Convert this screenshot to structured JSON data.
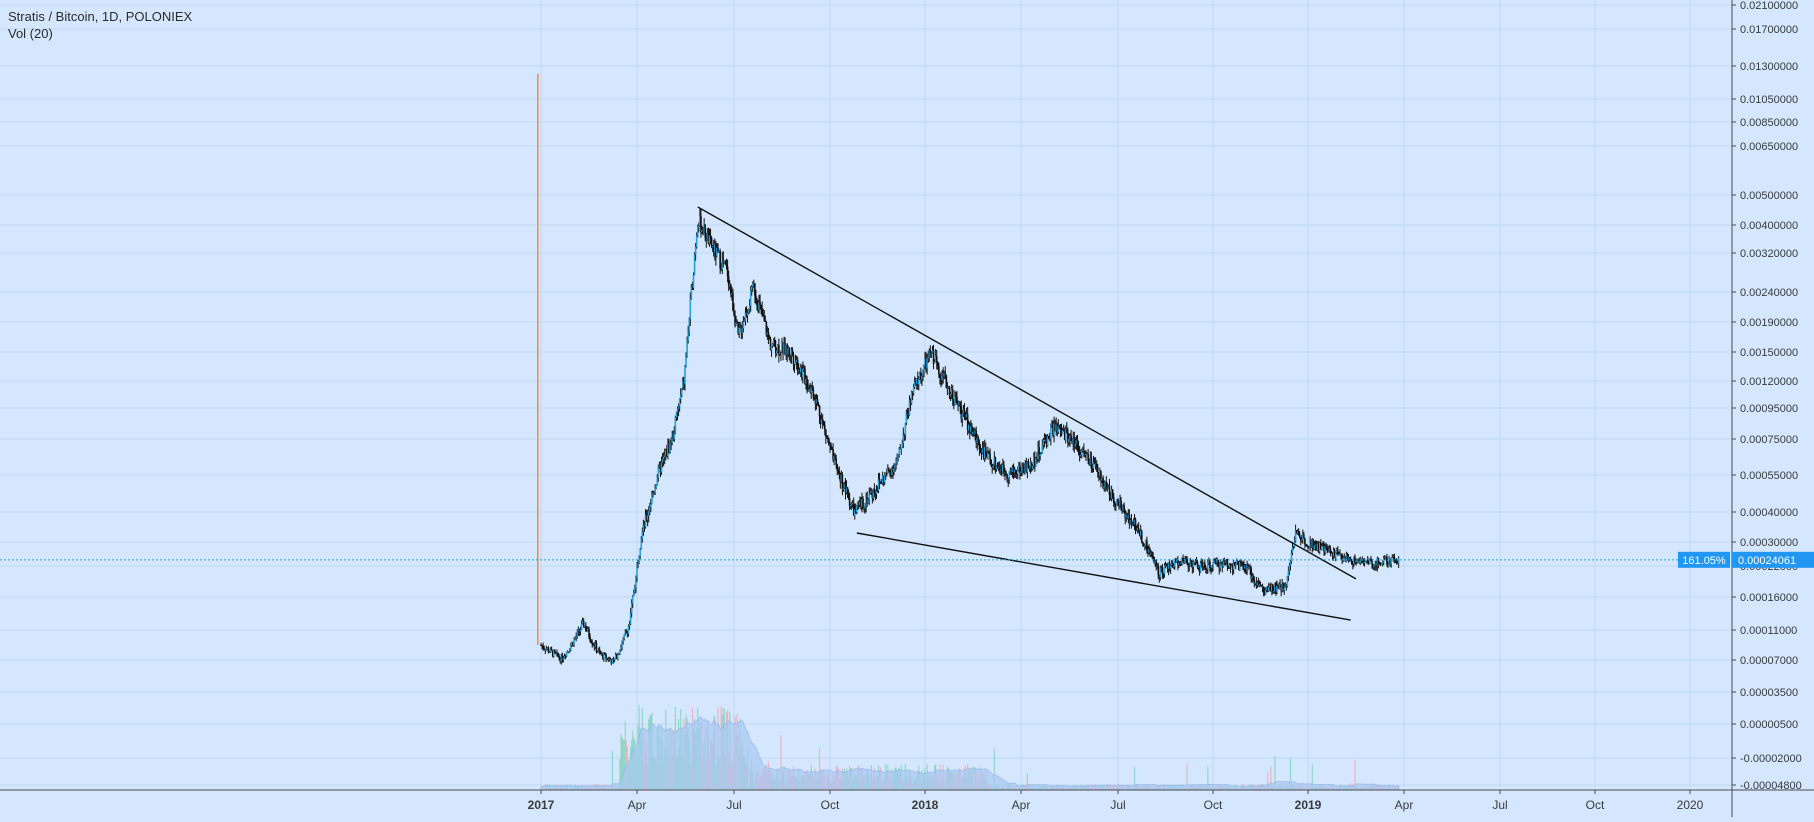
{
  "header": {
    "symbol_title": "Stratis / Bitcoin, 1D, POLONIEX",
    "indicator_title": "Vol (20)"
  },
  "colors": {
    "background": "#d4e7fe",
    "grid": "#bfd8f2",
    "axis_line": "#4a4a4a",
    "axis_text": "#3a3a3a",
    "candle": "#111111",
    "volume_area": "#a9c9f4",
    "volume_up": "#7fd3b8",
    "volume_down": "#f0a6b8",
    "price_line": "#2b9fd8",
    "price_label_bg": "#2196f3",
    "price_label_text": "#ffffff",
    "trendline": "#111111",
    "spike": "#f28c3c"
  },
  "price_label": {
    "percent": "161.05%",
    "value": "0.00024061"
  },
  "chart_data": {
    "type": "candlestick",
    "title": "Stratis / Bitcoin, 1D, POLONIEX",
    "y_axis_side": "right",
    "y_ticks": [
      "0.02100000",
      "0.01700000",
      "0.01300000",
      "0.01050000",
      "0.00850000",
      "0.00650000",
      "0.00500000",
      "0.00400000",
      "0.00320000",
      "0.00240000",
      "0.00190000",
      "0.00150000",
      "0.00120000",
      "0.00095000",
      "0.00075000",
      "0.00055000",
      "0.00040000",
      "0.00030000",
      "0.00022000",
      "0.00016000",
      "0.00011000",
      "0.00007000",
      "0.00003500",
      "0.00000500",
      "-0.00002000",
      "-0.00004800"
    ],
    "x_ticks": [
      {
        "label": "2017",
        "bold": true
      },
      {
        "label": "Apr",
        "bold": false
      },
      {
        "label": "Jul",
        "bold": false
      },
      {
        "label": "Oct",
        "bold": false
      },
      {
        "label": "2018",
        "bold": true
      },
      {
        "label": "Apr",
        "bold": false
      },
      {
        "label": "Jul",
        "bold": false
      },
      {
        "label": "Oct",
        "bold": false
      },
      {
        "label": "2019",
        "bold": true
      },
      {
        "label": "Apr",
        "bold": false
      },
      {
        "label": "Jul",
        "bold": false
      },
      {
        "label": "Oct",
        "bold": false
      },
      {
        "label": "2020",
        "bold": false
      }
    ],
    "grid": true,
    "price_path": [
      [
        "2017-01-01",
        9e-05
      ],
      [
        "2017-01-20",
        7.2e-05
      ],
      [
        "2017-02-10",
        0.00012
      ],
      [
        "2017-02-25",
        7.8e-05
      ],
      [
        "2017-03-10",
        6.8e-05
      ],
      [
        "2017-03-25",
        0.00012
      ],
      [
        "2017-04-05",
        0.00032
      ],
      [
        "2017-04-20",
        0.00055
      ],
      [
        "2017-05-05",
        0.00078
      ],
      [
        "2017-05-15",
        0.0012
      ],
      [
        "2017-05-22",
        0.0024
      ],
      [
        "2017-05-28",
        0.0042
      ],
      [
        "2017-06-10",
        0.0034
      ],
      [
        "2017-06-25",
        0.0028
      ],
      [
        "2017-07-05",
        0.0017
      ],
      [
        "2017-07-20",
        0.0025
      ],
      [
        "2017-08-05",
        0.0016
      ],
      [
        "2017-08-25",
        0.0015
      ],
      [
        "2017-09-15",
        0.0011
      ],
      [
        "2017-10-05",
        0.00062
      ],
      [
        "2017-10-25",
        0.0004
      ],
      [
        "2017-11-15",
        0.0005
      ],
      [
        "2017-12-05",
        0.00062
      ],
      [
        "2017-12-20",
        0.0011
      ],
      [
        "2018-01-07",
        0.0015
      ],
      [
        "2018-01-25",
        0.0011
      ],
      [
        "2018-02-10",
        0.00085
      ],
      [
        "2018-03-01",
        0.00064
      ],
      [
        "2018-03-20",
        0.00056
      ],
      [
        "2018-04-10",
        0.0006
      ],
      [
        "2018-05-01",
        0.00082
      ],
      [
        "2018-05-20",
        0.00075
      ],
      [
        "2018-06-10",
        0.00058
      ],
      [
        "2018-07-01",
        0.00043
      ],
      [
        "2018-07-20",
        0.00035
      ],
      [
        "2018-08-10",
        0.00021
      ],
      [
        "2018-09-01",
        0.00024
      ],
      [
        "2018-09-20",
        0.00022
      ],
      [
        "2018-10-10",
        0.00023
      ],
      [
        "2018-11-01",
        0.00022
      ],
      [
        "2018-11-20",
        0.00017
      ],
      [
        "2018-12-10",
        0.00018
      ],
      [
        "2018-12-20",
        0.00033
      ],
      [
        "2019-01-01",
        0.0003
      ],
      [
        "2019-01-20",
        0.00027
      ],
      [
        "2019-02-10",
        0.00024
      ],
      [
        "2019-03-01",
        0.00023
      ],
      [
        "2019-03-25",
        0.00024
      ]
    ],
    "spike_high": [
      "2016-12-29",
      0.0124
    ],
    "trendlines": [
      {
        "from": [
          "2017-05-28",
          0.0046
        ],
        "to": [
          "2019-02-15",
          0.000195
        ]
      },
      {
        "from": [
          "2017-10-27",
          0.00033
        ],
        "to": [
          "2019-02-10",
          0.000125
        ]
      }
    ]
  }
}
